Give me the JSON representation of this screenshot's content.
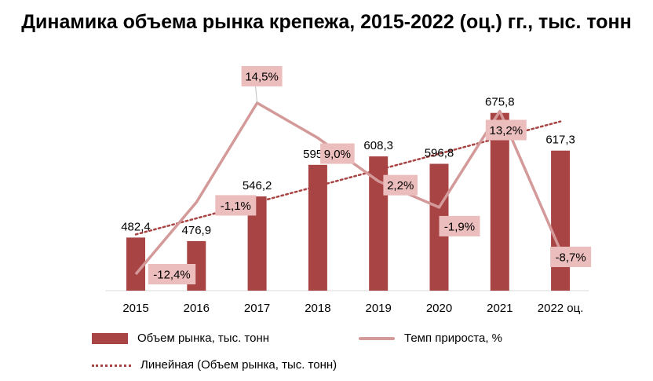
{
  "chart_data": {
    "type": "bar",
    "title": "Динамика объема рынка крепежа, 2015-2022 (оц.) гг., тыс. тонн",
    "categories": [
      "2015",
      "2016",
      "2017",
      "2018",
      "2019",
      "2020",
      "2021",
      "2022 оц."
    ],
    "series": [
      {
        "name": "Объем рынка, тыс. тонн",
        "type": "bar",
        "color": "#a94444",
        "values": [
          482.4,
          476.9,
          546.2,
          595.2,
          608.3,
          596.8,
          675.8,
          617.3
        ],
        "labels": [
          "482,4",
          "476,9",
          "546,2",
          "595,2",
          "608,3",
          "596,8",
          "675,8",
          "617,3"
        ]
      },
      {
        "name": "Темп прироста, %",
        "type": "line",
        "color": "#d49a9a",
        "values": [
          -12.4,
          -1.1,
          14.5,
          9.0,
          2.2,
          -1.9,
          13.2,
          -8.7
        ],
        "labels": [
          "-12,4%",
          "-1,1%",
          "14,5%",
          "9,0%",
          "2,2%",
          "-1,9%",
          "13,2%",
          "-8,7%"
        ]
      },
      {
        "name": "Линейная (Объем рынка, тыс. тонн)",
        "type": "trendline",
        "color": "#a94444"
      }
    ],
    "label_box_color": "#ebbdbd",
    "grid": false,
    "legend_position": "bottom"
  }
}
